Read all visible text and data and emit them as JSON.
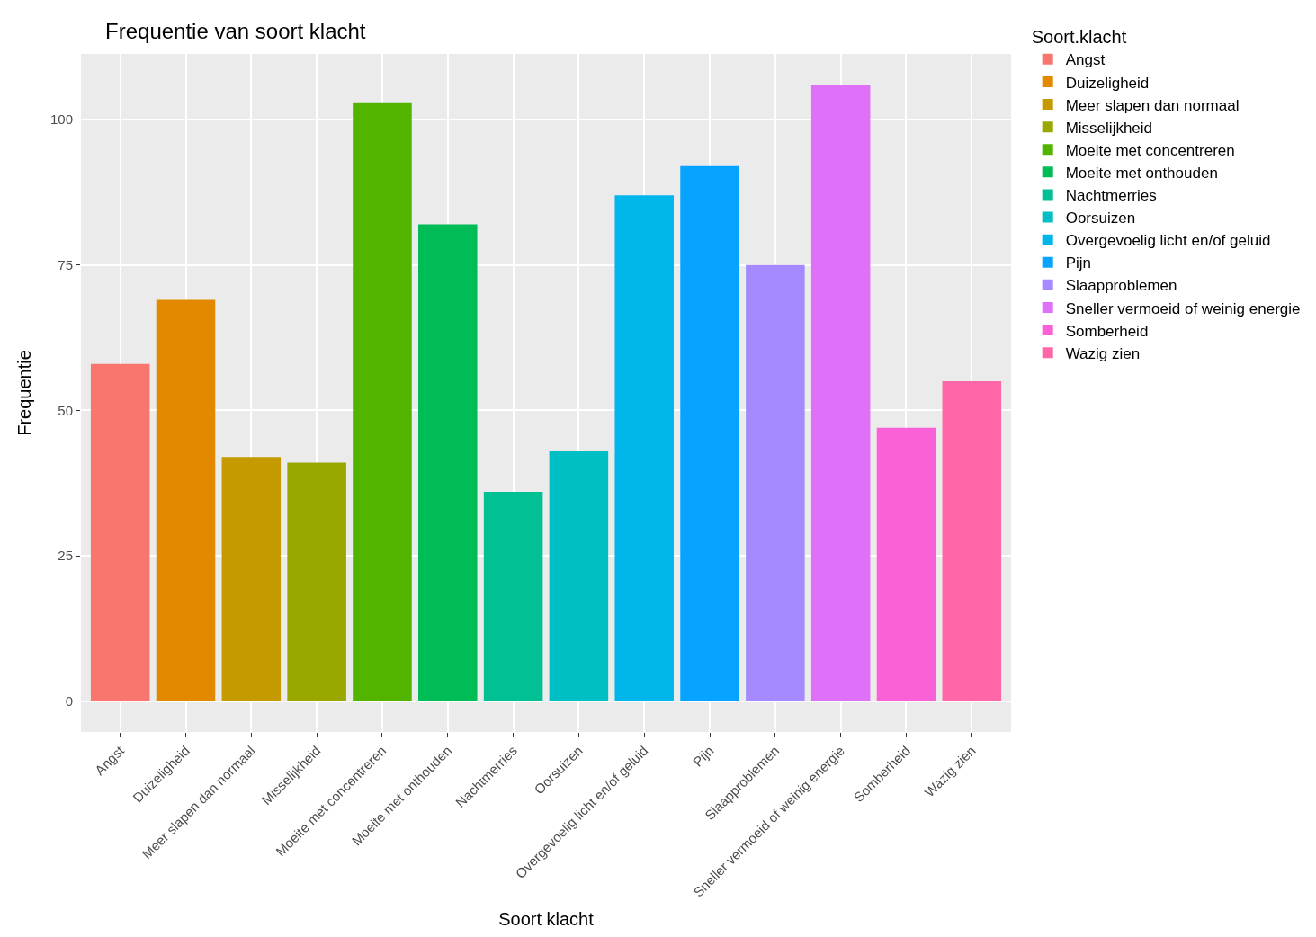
{
  "chart_data": {
    "type": "bar",
    "title": "Frequentie van soort klacht",
    "xlabel": "Soort klacht",
    "ylabel": "Frequentie",
    "legend_title": "Soort.klacht",
    "categories": [
      "Angst",
      "Duizeligheid",
      "Meer slapen dan normaal",
      "Misselijkheid",
      "Moeite met concentreren",
      "Moeite met onthouden",
      "Nachtmerries",
      "Oorsuizen",
      "Overgevoelig licht en/of geluid",
      "Pijn",
      "Slaapproblemen",
      "Sneller vermoeid of weinig energie",
      "Somberheid",
      "Wazig zien"
    ],
    "series": [
      {
        "name": "Angst",
        "color": "#F8766D",
        "values": [
          58,
          null,
          null,
          null,
          null,
          null,
          null,
          null,
          null,
          null,
          null,
          null,
          null,
          null
        ]
      },
      {
        "name": "Duizeligheid",
        "color": "#E38900",
        "values": [
          null,
          69,
          null,
          null,
          null,
          null,
          null,
          null,
          null,
          null,
          null,
          null,
          null,
          null
        ]
      },
      {
        "name": "Meer slapen dan normaal",
        "color": "#C49A00",
        "values": [
          null,
          null,
          42,
          null,
          null,
          null,
          null,
          null,
          null,
          null,
          null,
          null,
          null,
          null
        ]
      },
      {
        "name": "Misselijkheid",
        "color": "#99A800",
        "values": [
          null,
          null,
          null,
          41,
          null,
          null,
          null,
          null,
          null,
          null,
          null,
          null,
          null,
          null
        ]
      },
      {
        "name": "Moeite met concentreren",
        "color": "#53B400",
        "values": [
          null,
          null,
          null,
          null,
          103,
          null,
          null,
          null,
          null,
          null,
          null,
          null,
          null,
          null
        ]
      },
      {
        "name": "Moeite met onthouden",
        "color": "#00BC56",
        "values": [
          null,
          null,
          null,
          null,
          null,
          82,
          null,
          null,
          null,
          null,
          null,
          null,
          null,
          null
        ]
      },
      {
        "name": "Nachtmerries",
        "color": "#00C094",
        "values": [
          null,
          null,
          null,
          null,
          null,
          null,
          36,
          null,
          null,
          null,
          null,
          null,
          null,
          null
        ]
      },
      {
        "name": "Oorsuizen",
        "color": "#00BFC4",
        "values": [
          null,
          null,
          null,
          null,
          null,
          null,
          null,
          43,
          null,
          null,
          null,
          null,
          null,
          null
        ]
      },
      {
        "name": "Overgevoelig licht en/of geluid",
        "color": "#00B6EB",
        "values": [
          null,
          null,
          null,
          null,
          null,
          null,
          null,
          null,
          87,
          null,
          null,
          null,
          null,
          null
        ]
      },
      {
        "name": "Pijn",
        "color": "#06A4FF",
        "values": [
          null,
          null,
          null,
          null,
          null,
          null,
          null,
          null,
          null,
          92,
          null,
          null,
          null,
          null
        ]
      },
      {
        "name": "Slaapproblemen",
        "color": "#A58AFF",
        "values": [
          null,
          null,
          null,
          null,
          null,
          null,
          null,
          null,
          null,
          null,
          75,
          null,
          null,
          null
        ]
      },
      {
        "name": "Sneller vermoeid of weinig energie",
        "color": "#DF70F8",
        "values": [
          null,
          null,
          null,
          null,
          null,
          null,
          null,
          null,
          null,
          null,
          null,
          106,
          null,
          null
        ]
      },
      {
        "name": "Somberheid",
        "color": "#FB61D7",
        "values": [
          null,
          null,
          null,
          null,
          null,
          null,
          null,
          null,
          null,
          null,
          null,
          null,
          47,
          null
        ]
      },
      {
        "name": "Wazig zien",
        "color": "#FF66A8",
        "values": [
          null,
          null,
          null,
          null,
          null,
          null,
          null,
          null,
          null,
          null,
          null,
          null,
          null,
          55
        ]
      }
    ],
    "ylim": [
      -5.3,
      111.3
    ],
    "yticks": [
      0,
      25,
      50,
      75,
      100
    ],
    "grid": true,
    "legend": "right"
  }
}
